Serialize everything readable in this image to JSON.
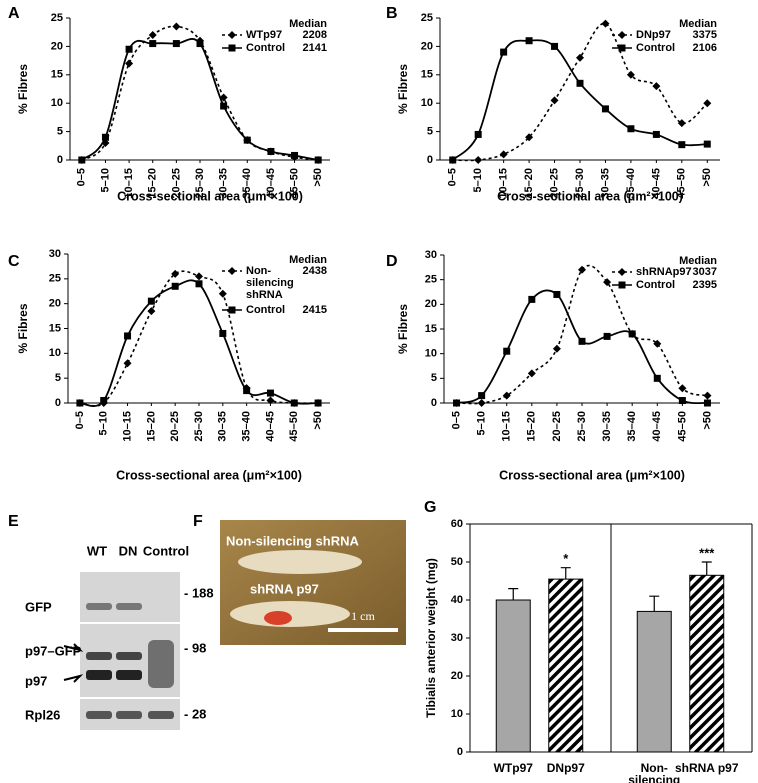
{
  "chart_data": [
    {
      "type": "line",
      "panel": "A",
      "ylabel": "% Fibres",
      "xlabel": "Cross-sectional area (μm²×100)",
      "legend_title": "Median",
      "categories": [
        "0–5",
        "5–10",
        "10–15",
        "15–20",
        "20–25",
        "25–30",
        "30–35",
        "35–40",
        "40–45",
        "45–50",
        ">50"
      ],
      "ylim": [
        0,
        25
      ],
      "yticks": [
        0,
        5,
        10,
        15,
        20,
        25
      ],
      "series": [
        {
          "name": "WTp97",
          "median": 2208,
          "color": "#000000",
          "dashed": true,
          "marker": "diamond",
          "values": [
            0,
            3,
            17,
            22,
            23.5,
            21,
            11,
            3.5,
            1.5,
            0.5,
            0
          ]
        },
        {
          "name": "Control",
          "median": 2141,
          "color": "#000000",
          "dashed": false,
          "marker": "square",
          "values": [
            0,
            4,
            19.5,
            20.5,
            20.5,
            20.5,
            9.5,
            3.5,
            1.5,
            0.8,
            0
          ]
        }
      ]
    },
    {
      "type": "line",
      "panel": "B",
      "ylabel": "% Fibres",
      "xlabel": "Cross-sectional area (μm²×100)",
      "legend_title": "Median",
      "categories": [
        "0–5",
        "5–10",
        "10–15",
        "15–20",
        "20–25",
        "25–30",
        "30–35",
        "35–40",
        "40–45",
        "45–50",
        ">50"
      ],
      "ylim": [
        0,
        25
      ],
      "yticks": [
        0,
        5,
        10,
        15,
        20,
        25
      ],
      "series": [
        {
          "name": "DNp97",
          "median": 3375,
          "color": "#000000",
          "dashed": true,
          "marker": "diamond",
          "values": [
            0,
            0,
            1,
            4,
            10.5,
            18,
            24,
            15,
            13,
            6.5,
            10
          ]
        },
        {
          "name": "Control",
          "median": 2106,
          "color": "#000000",
          "dashed": false,
          "marker": "square",
          "values": [
            0,
            4.5,
            19,
            21,
            20,
            13.5,
            9,
            5.5,
            4.5,
            2.7,
            2.8
          ]
        }
      ]
    },
    {
      "type": "line",
      "panel": "C",
      "ylabel": "% Fibres",
      "xlabel": "Cross-sectional area (μm²×100)",
      "legend_title": "Median",
      "categories": [
        "0–5",
        "5–10",
        "10–15",
        "15–20",
        "20–25",
        "25–30",
        "30–35",
        "35–40",
        "40–45",
        "45–50",
        ">50"
      ],
      "ylim": [
        0,
        30
      ],
      "yticks": [
        0,
        5,
        10,
        15,
        20,
        25,
        30
      ],
      "series": [
        {
          "name": "Non-silencing shRNA",
          "median": 2438,
          "color": "#000000",
          "dashed": true,
          "marker": "diamond",
          "values": [
            0,
            0,
            8,
            18.5,
            26,
            25.5,
            22,
            3,
            0.5,
            0,
            0
          ]
        },
        {
          "name": "Control",
          "median": 2415,
          "color": "#000000",
          "dashed": false,
          "marker": "square",
          "values": [
            0,
            0.5,
            13.5,
            20.5,
            23.5,
            24,
            14,
            2.5,
            2,
            0,
            0
          ]
        }
      ]
    },
    {
      "type": "line",
      "panel": "D",
      "ylabel": "% Fibres",
      "xlabel": "Cross-sectional area (μm²×100)",
      "legend_title": "Median",
      "categories": [
        "0–5",
        "5–10",
        "10–15",
        "15–20",
        "20–25",
        "25–30",
        "30–35",
        "35–40",
        "40–45",
        "45–50",
        ">50"
      ],
      "ylim": [
        0,
        30
      ],
      "yticks": [
        0,
        5,
        10,
        15,
        20,
        25,
        30
      ],
      "series": [
        {
          "name": "shRNAp97",
          "median": 3037,
          "color": "#000000",
          "dashed": true,
          "marker": "diamond",
          "values": [
            0,
            0,
            1.5,
            6,
            11,
            27,
            24.5,
            14,
            12,
            3,
            1.5
          ]
        },
        {
          "name": "Control",
          "median": 2395,
          "color": "#000000",
          "dashed": false,
          "marker": "square",
          "values": [
            0,
            1.5,
            10.5,
            21,
            22,
            12.5,
            13.5,
            14,
            5,
            0.5,
            0
          ]
        }
      ]
    },
    {
      "type": "bar",
      "panel": "G",
      "ylabel": "Tibialis anterior weight (mg)",
      "categories": [
        "WTp97",
        "DNp97",
        "Non-silencing shRNA",
        "shRNA p97"
      ],
      "values": [
        40,
        45.5,
        37,
        46.5
      ],
      "errors": [
        3,
        3,
        4,
        3.5
      ],
      "color": "#a6a6a6",
      "patterns": [
        "solid",
        "hatch",
        "solid",
        "hatch"
      ],
      "ylim": [
        0,
        60
      ],
      "yticks": [
        0,
        10,
        20,
        30,
        40,
        50,
        60
      ],
      "annotations": [
        {
          "text": "*",
          "category": 1
        },
        {
          "text": "***",
          "category": 3
        }
      ]
    }
  ],
  "blot": {
    "panel": "E",
    "lanes": [
      "WT",
      "DN",
      "Control"
    ],
    "rows": [
      "GFP",
      "p97–GFP",
      "p97",
      "Rpl26"
    ],
    "markers": [
      "- 188",
      "- 98",
      "- 28"
    ]
  },
  "photo": {
    "panel": "F",
    "labels": [
      "Non-silencing shRNA",
      "shRNA p97"
    ],
    "scale": "1 cm"
  }
}
